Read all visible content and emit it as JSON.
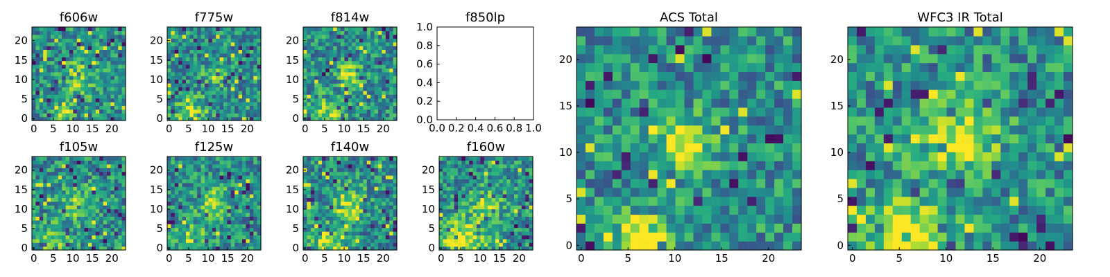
{
  "chart_data": [
    {
      "id": "f606w",
      "type": "heatmap",
      "title": "f606w",
      "grid": "24x24",
      "xlim": [
        0,
        24
      ],
      "ylim": [
        0,
        24
      ],
      "xticks": [
        "0",
        "5",
        "10",
        "15",
        "20"
      ],
      "yticks": [
        "0",
        "5",
        "10",
        "15",
        "20"
      ],
      "colormap": "viridis",
      "has_data": true,
      "seed": 11,
      "hotspots": [
        {
          "x": 12,
          "y": 11,
          "r": 3,
          "a": 0.35
        },
        {
          "x": 8,
          "y": 1,
          "r": 2,
          "a": 0.3
        }
      ]
    },
    {
      "id": "f775w",
      "type": "heatmap",
      "title": "f775w",
      "grid": "24x24",
      "xlim": [
        0,
        24
      ],
      "ylim": [
        0,
        24
      ],
      "xticks": [
        "0",
        "5",
        "10",
        "15",
        "20"
      ],
      "yticks": [
        "0",
        "5",
        "10",
        "15",
        "20"
      ],
      "colormap": "viridis",
      "has_data": true,
      "seed": 23,
      "hotspots": [
        {
          "x": 6,
          "y": 1,
          "r": 3,
          "a": 0.4
        },
        {
          "x": 12,
          "y": 11,
          "r": 2,
          "a": 0.25
        }
      ]
    },
    {
      "id": "f814w",
      "type": "heatmap",
      "title": "f814w",
      "grid": "24x24",
      "xlim": [
        0,
        24
      ],
      "ylim": [
        0,
        24
      ],
      "xticks": [
        "0",
        "5",
        "10",
        "15",
        "20"
      ],
      "yticks": [
        "0",
        "5",
        "10",
        "15",
        "20"
      ],
      "colormap": "viridis",
      "has_data": true,
      "seed": 37,
      "hotspots": [
        {
          "x": 12,
          "y": 12,
          "r": 2,
          "a": 0.45
        },
        {
          "x": 6,
          "y": 1,
          "r": 3,
          "a": 0.35
        }
      ]
    },
    {
      "id": "f850lp",
      "type": "heatmap",
      "title": "f850lp",
      "xlim": [
        0.0,
        1.0
      ],
      "ylim": [
        0.0,
        1.0
      ],
      "xticks": [
        "0.0",
        "0.2",
        "0.4",
        "0.6",
        "0.8",
        "1.0"
      ],
      "yticks": [
        "0.0",
        "0.2",
        "0.4",
        "0.6",
        "0.8",
        "1.0"
      ],
      "has_data": false
    },
    {
      "id": "f105w",
      "type": "heatmap",
      "title": "f105w",
      "grid": "24x24",
      "xlim": [
        0,
        24
      ],
      "ylim": [
        0,
        24
      ],
      "xticks": [
        "0",
        "5",
        "10",
        "15",
        "20"
      ],
      "yticks": [
        "0",
        "5",
        "10",
        "15",
        "20"
      ],
      "colormap": "viridis",
      "has_data": true,
      "seed": 41,
      "hotspots": [
        {
          "x": 12,
          "y": 12,
          "r": 3,
          "a": 0.3
        },
        {
          "x": 5,
          "y": 2,
          "r": 3,
          "a": 0.3
        }
      ]
    },
    {
      "id": "f125w",
      "type": "heatmap",
      "title": "f125w",
      "grid": "24x24",
      "xlim": [
        0,
        24
      ],
      "ylim": [
        0,
        24
      ],
      "xticks": [
        "0",
        "5",
        "10",
        "15",
        "20"
      ],
      "yticks": [
        "0",
        "5",
        "10",
        "15",
        "20"
      ],
      "colormap": "viridis",
      "has_data": true,
      "seed": 53,
      "hotspots": [
        {
          "x": 12,
          "y": 12,
          "r": 3,
          "a": 0.3
        },
        {
          "x": 6,
          "y": 2,
          "r": 3,
          "a": 0.3
        }
      ]
    },
    {
      "id": "f140w",
      "type": "heatmap",
      "title": "f140w",
      "grid": "24x24",
      "xlim": [
        0,
        24
      ],
      "ylim": [
        0,
        24
      ],
      "xticks": [
        "0",
        "5",
        "10",
        "15",
        "20"
      ],
      "yticks": [
        "0",
        "5",
        "10",
        "15",
        "20"
      ],
      "colormap": "viridis",
      "has_data": true,
      "seed": 67,
      "hotspots": [
        {
          "x": 12,
          "y": 12,
          "r": 3,
          "a": 0.35
        },
        {
          "x": 6,
          "y": 2,
          "r": 3,
          "a": 0.35
        }
      ]
    },
    {
      "id": "f160w",
      "type": "heatmap",
      "title": "f160w",
      "grid": "24x24",
      "xlim": [
        0,
        24
      ],
      "ylim": [
        0,
        24
      ],
      "xticks": [
        "0",
        "5",
        "10",
        "15",
        "20"
      ],
      "yticks": [
        "0",
        "5",
        "10",
        "15",
        "20"
      ],
      "colormap": "viridis",
      "has_data": true,
      "seed": 79,
      "hotspots": [
        {
          "x": 6,
          "y": 2,
          "r": 4,
          "a": 0.5
        },
        {
          "x": 12,
          "y": 12,
          "r": 3,
          "a": 0.35
        }
      ]
    },
    {
      "id": "acs_total",
      "type": "heatmap",
      "title": "ACS Total",
      "grid": "24x24",
      "xlim": [
        0,
        24
      ],
      "ylim": [
        0,
        24
      ],
      "xticks": [
        "0",
        "5",
        "10",
        "15",
        "20"
      ],
      "yticks": [
        "0",
        "5",
        "10",
        "15",
        "20"
      ],
      "colormap": "viridis",
      "has_data": true,
      "seed": 97,
      "hotspots": [
        {
          "x": 11.5,
          "y": 11.5,
          "r": 2,
          "a": 0.55
        },
        {
          "x": 7,
          "y": 0.5,
          "r": 2,
          "a": 0.55
        }
      ]
    },
    {
      "id": "wfc3_ir_total",
      "type": "heatmap",
      "title": "WFC3 IR Total",
      "grid": "24x24",
      "xlim": [
        0,
        24
      ],
      "ylim": [
        0,
        24
      ],
      "xticks": [
        "0",
        "5",
        "10",
        "15",
        "20"
      ],
      "yticks": [
        "0",
        "5",
        "10",
        "15",
        "20"
      ],
      "colormap": "viridis",
      "has_data": true,
      "seed": 131,
      "hotspots": [
        {
          "x": 12,
          "y": 12,
          "r": 3,
          "a": 0.45
        },
        {
          "x": 6,
          "y": 1,
          "r": 3,
          "a": 0.55
        }
      ]
    }
  ]
}
